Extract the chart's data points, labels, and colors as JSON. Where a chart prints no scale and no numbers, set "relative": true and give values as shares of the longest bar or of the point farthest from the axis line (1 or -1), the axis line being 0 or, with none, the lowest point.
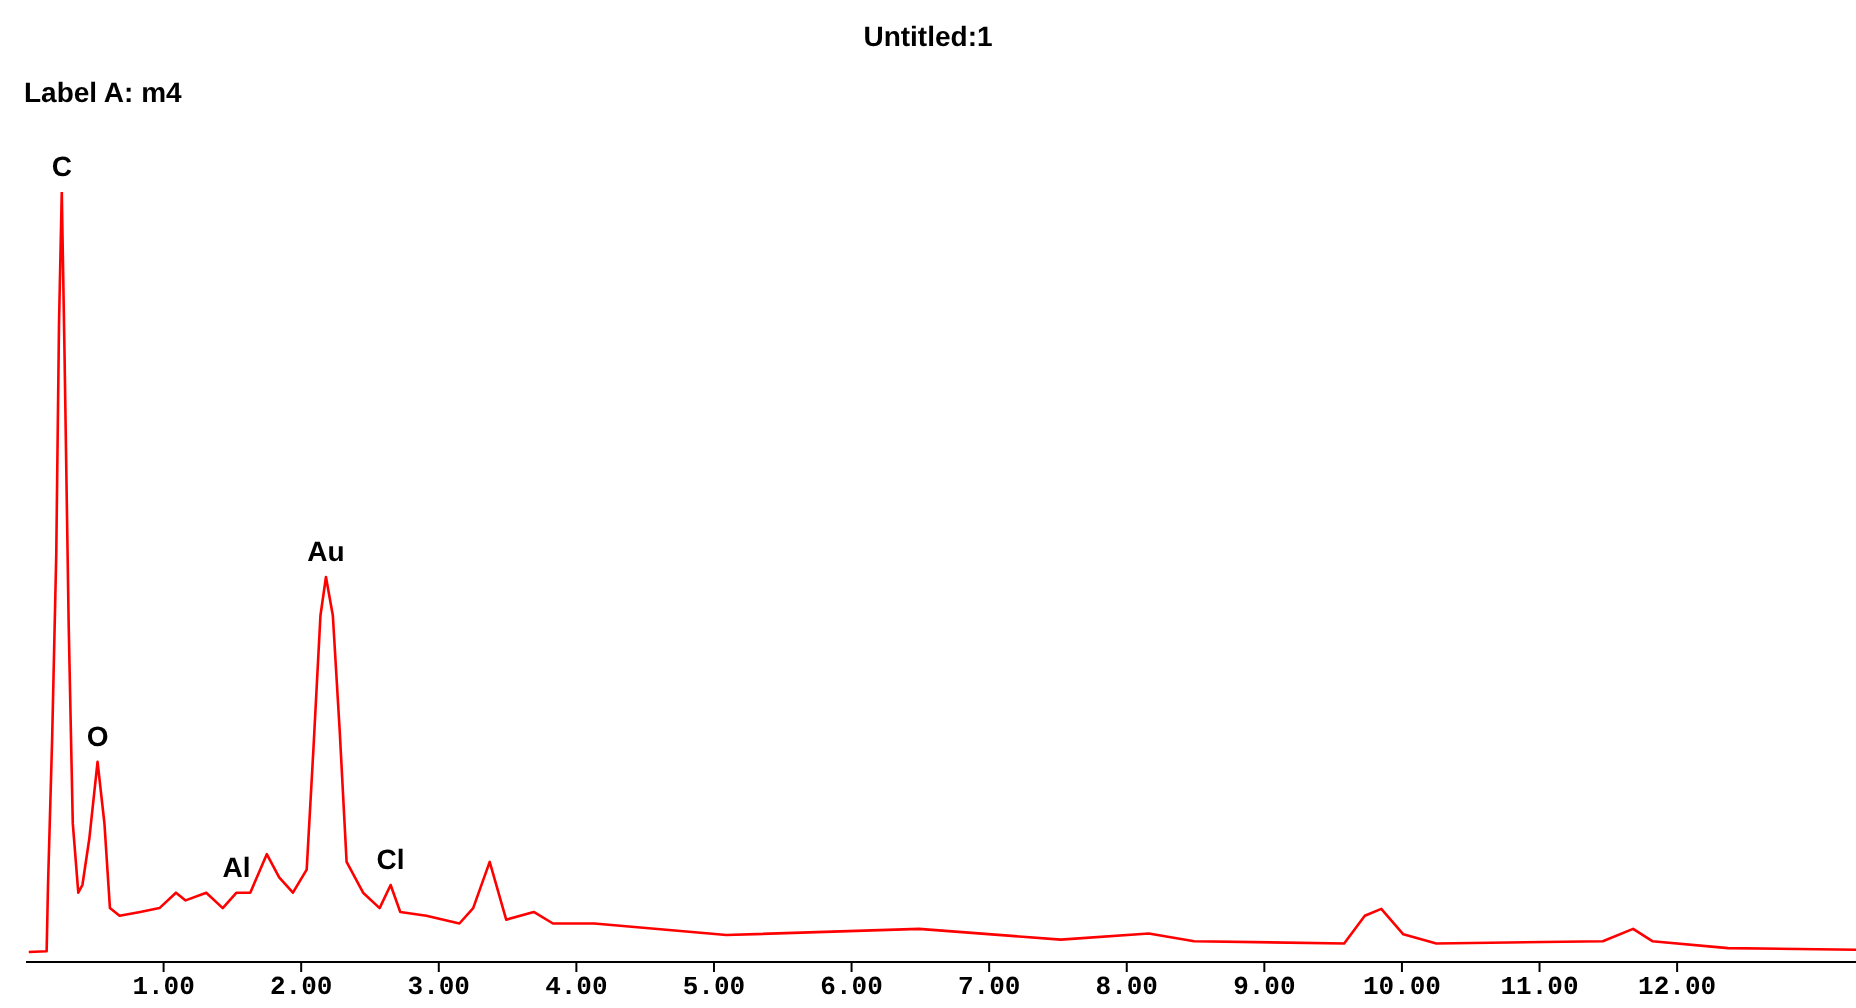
{
  "chart_data": {
    "type": "line",
    "title": "Untitled:1",
    "subtitle": "Label A: m4",
    "relative": true,
    "grid": false,
    "legend": false,
    "marker": "none",
    "line_style": "solid",
    "xlim": [
      0,
      13.3
    ],
    "xticks": [
      {
        "value": 1,
        "label": "1.00"
      },
      {
        "value": 2,
        "label": "2.00"
      },
      {
        "value": 3,
        "label": "3.00"
      },
      {
        "value": 4,
        "label": "4.00"
      },
      {
        "value": 5,
        "label": "5.00"
      },
      {
        "value": 6,
        "label": "6.00"
      },
      {
        "value": 7,
        "label": "7.00"
      },
      {
        "value": 8,
        "label": "8.00"
      },
      {
        "value": 9,
        "label": "9.00"
      },
      {
        "value": 10,
        "label": "10.00"
      },
      {
        "value": 11,
        "label": "11.00"
      },
      {
        "value": 12,
        "label": "12.00"
      }
    ],
    "annotations": [
      {
        "text": "C",
        "x": 0.26,
        "y": 1.0
      },
      {
        "text": "O",
        "x": 0.52,
        "y": 0.26
      },
      {
        "text": "Al",
        "x": 1.53,
        "y": 0.09
      },
      {
        "text": "Au",
        "x": 2.18,
        "y": 0.5
      },
      {
        "text": "Cl",
        "x": 2.65,
        "y": 0.1
      }
    ],
    "series": [
      {
        "color": "#ff0000",
        "x": [
          0.02,
          0.15,
          0.16,
          0.19,
          0.22,
          0.24,
          0.26,
          0.28,
          0.31,
          0.34,
          0.38,
          0.41,
          0.46,
          0.52,
          0.57,
          0.61,
          0.68,
          0.83,
          0.97,
          1.09,
          1.16,
          1.31,
          1.43,
          1.53,
          1.63,
          1.75,
          1.84,
          1.94,
          2.04,
          2.09,
          2.14,
          2.18,
          2.23,
          2.28,
          2.33,
          2.45,
          2.57,
          2.65,
          2.72,
          2.91,
          3.15,
          3.25,
          3.37,
          3.49,
          3.69,
          3.83,
          4.13,
          5.09,
          6.49,
          7.52,
          8.16,
          8.49,
          9.58,
          9.73,
          9.85,
          10.01,
          10.25,
          11.46,
          11.68,
          11.82,
          12.37,
          13.3
        ],
        "values": [
          0.013,
          0.014,
          0.1,
          0.29,
          0.53,
          0.83,
          1.0,
          0.79,
          0.44,
          0.18,
          0.09,
          0.1,
          0.16,
          0.26,
          0.18,
          0.07,
          0.06,
          0.065,
          0.07,
          0.09,
          0.08,
          0.09,
          0.07,
          0.09,
          0.09,
          0.14,
          0.11,
          0.09,
          0.12,
          0.28,
          0.45,
          0.5,
          0.45,
          0.3,
          0.13,
          0.09,
          0.07,
          0.1,
          0.065,
          0.06,
          0.05,
          0.07,
          0.13,
          0.055,
          0.065,
          0.05,
          0.05,
          0.035,
          0.043,
          0.029,
          0.037,
          0.027,
          0.024,
          0.06,
          0.069,
          0.036,
          0.024,
          0.027,
          0.043,
          0.027,
          0.018,
          0.016
        ]
      }
    ]
  }
}
